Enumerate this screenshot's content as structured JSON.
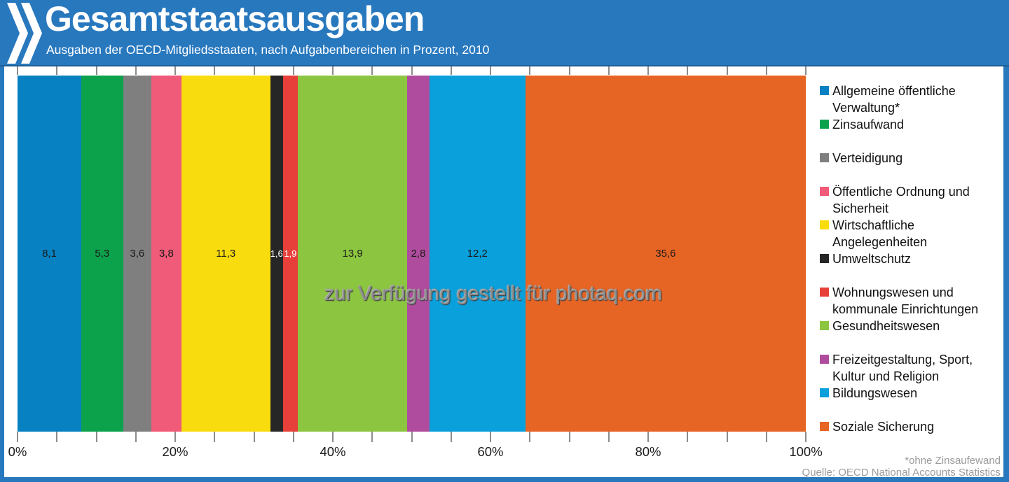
{
  "colors": {
    "brand_blue": "#2878BE",
    "plot_background": "#FFFFFF",
    "tick": "#8C8C8C",
    "footer_text": "#9B9B9B"
  },
  "icons": {
    "logo": "oecd-double-chevron"
  },
  "watermark": {
    "text": "zur Verfügung gestellt für photaq.com"
  },
  "chart_data": {
    "type": "bar",
    "stacked": true,
    "orientation": "horizontal",
    "title": "Gesamtstaatsausgaben",
    "subtitle": "Ausgaben der OECD-Mitgliedsstaaten, nach Aufgabenbereichen in Prozent, 2010",
    "unit": "%",
    "series": [
      {
        "name": "Allgemeine öffentliche Verwaltung*",
        "value": 8.1,
        "label": "8,1",
        "color": "#0881C2"
      },
      {
        "name": "Zinsaufwand",
        "value": 5.3,
        "label": "5,3",
        "color": "#0CA24C"
      },
      {
        "name": "Verteidigung",
        "value": 3.6,
        "label": "3,6",
        "color": "#7F7F7F"
      },
      {
        "name": "Öffentliche Ordnung und Sicherheit",
        "value": 3.8,
        "label": "3,8",
        "color": "#EF5B78"
      },
      {
        "name": "Wirtschaftliche Angelegenheiten",
        "value": 11.3,
        "label": "11,3",
        "color": "#F9DC0D"
      },
      {
        "name": "Umweltschutz",
        "value": 1.6,
        "label": "1,6",
        "color": "#262626",
        "label_color": "#FFFFFF",
        "label_size": 13
      },
      {
        "name": "Wohnungswesen und kommunale Einrichtungen",
        "value": 1.9,
        "label": "1,9",
        "color": "#E7403B",
        "label_color": "#FFFFFF",
        "label_size": 13
      },
      {
        "name": "Gesundheitswesen",
        "value": 13.9,
        "label": "13,9",
        "color": "#8CC540"
      },
      {
        "name": "Freizeitgestaltung, Sport, Kultur und Religion",
        "value": 2.8,
        "label": "2,8",
        "color": "#B04C9D"
      },
      {
        "name": "Bildungswesen",
        "value": 12.2,
        "label": "12,2",
        "color": "#09A0DC"
      },
      {
        "name": "Soziale Sicherung",
        "value": 35.6,
        "label": "35,6",
        "color": "#E66424"
      }
    ],
    "xticks": [
      "0%",
      "20%",
      "40%",
      "60%",
      "80%",
      "100%"
    ],
    "axis": {
      "min": 0,
      "max": 100,
      "minor_tick_step": 5,
      "major_tick_step": 20,
      "grid": false
    },
    "legend_position": "right",
    "footnote": "*ohne Zinsaufewand",
    "source": "Quelle: OECD National Accounts Statistics"
  }
}
